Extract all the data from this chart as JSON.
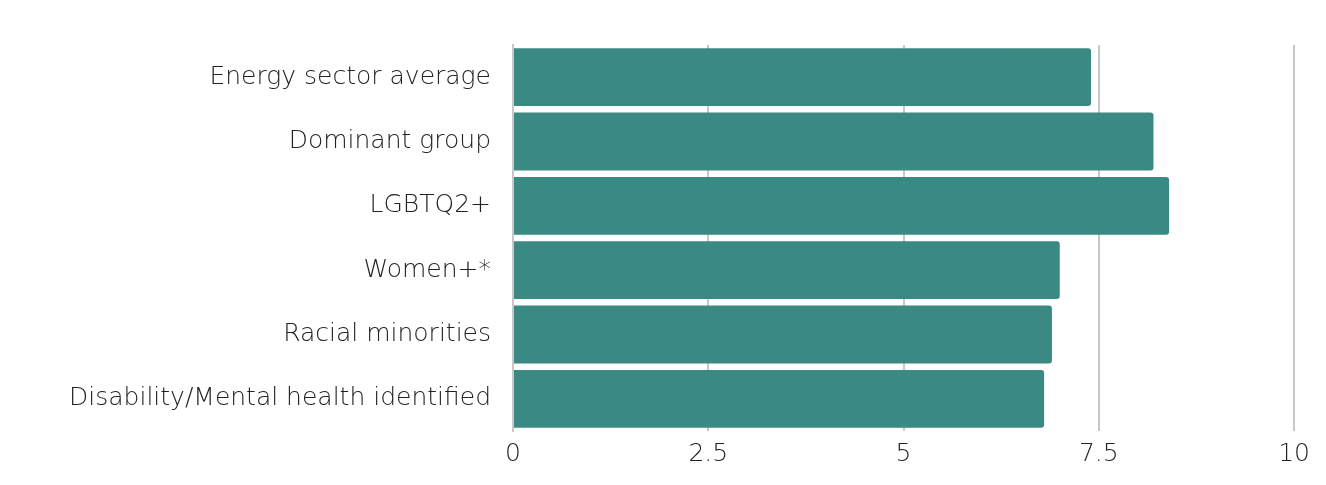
{
  "chart_data": {
    "type": "bar",
    "orientation": "horizontal",
    "categories": [
      "Energy sector average",
      "Dominant group",
      "LGBTQ2+",
      "Women+*",
      "Racial minorities",
      "Disability/Mental health identified"
    ],
    "values": [
      7.4,
      8.2,
      8.4,
      7.0,
      6.9,
      6.8
    ],
    "color": "#3a8a83",
    "xlim": [
      0,
      10
    ],
    "xticks": [
      0,
      2.5,
      5,
      7.5,
      10
    ],
    "grid": "x"
  }
}
